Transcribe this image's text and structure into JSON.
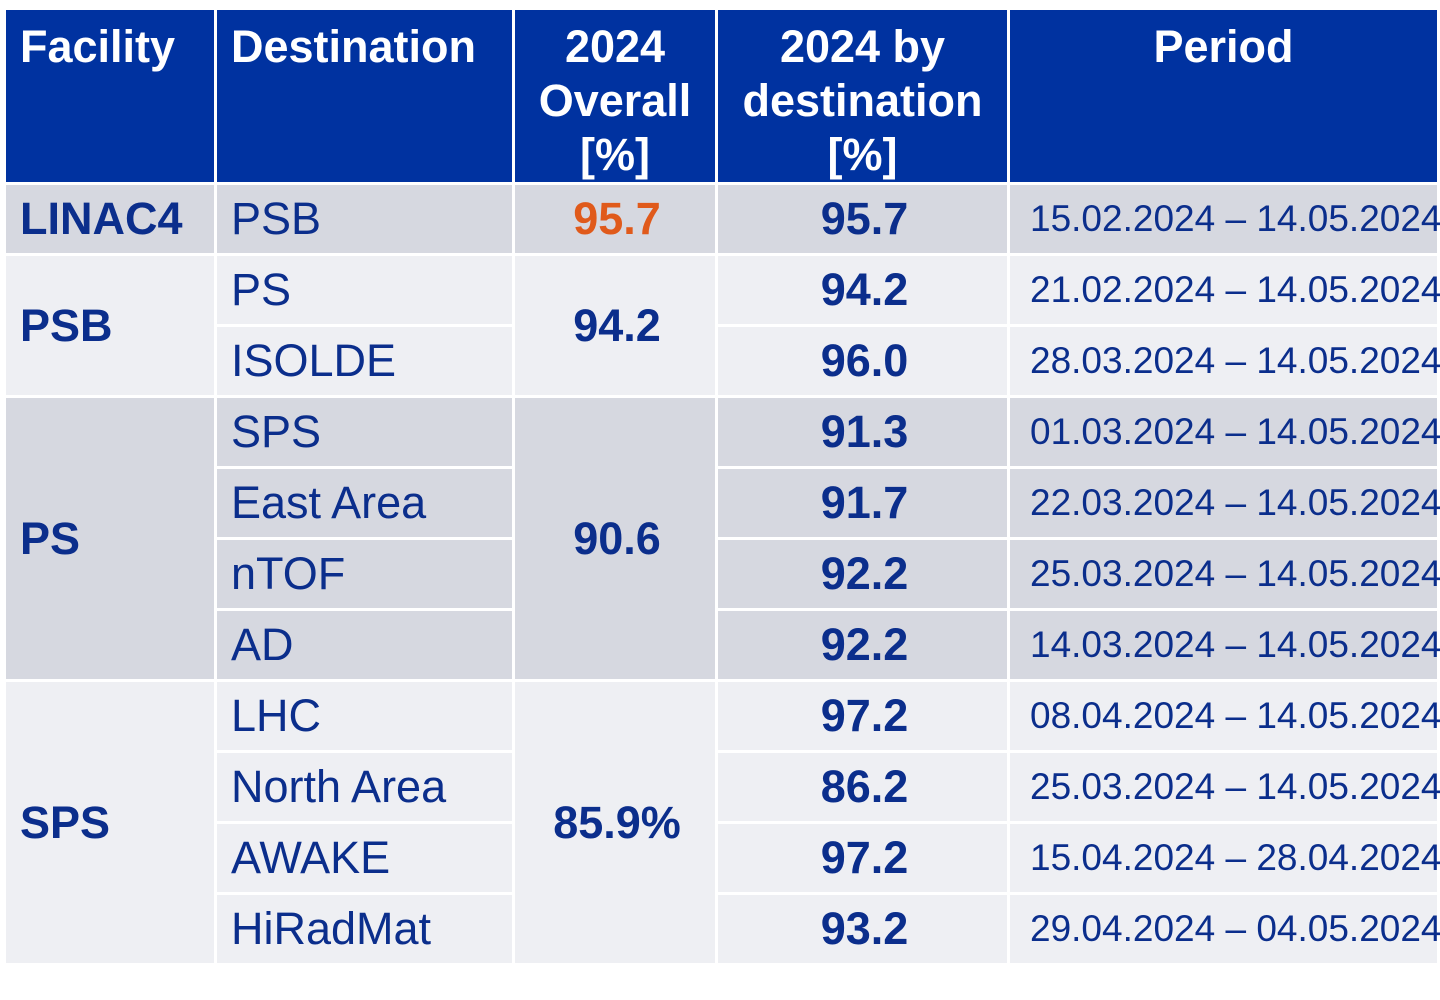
{
  "headers": {
    "facility": "Facility",
    "destination": "Destination",
    "overall_line1": "2024",
    "overall_line2": "Overall",
    "overall_line3": "[%]",
    "bydest_line1": "2024 by",
    "bydest_line2": "destination",
    "bydest_line3": "[%]",
    "period": "Period"
  },
  "colors": {
    "header_bg": "#0032a0",
    "text": "#0b2e8c",
    "highlight": "#e05a1b",
    "row_dark": "#d6d8e0",
    "row_light": "#eeeff3"
  },
  "groups": [
    {
      "facility": "LINAC4",
      "overall": "95.7",
      "rows": [
        {
          "destination": "PSB",
          "by_destination": "95.7",
          "period": "15.02.2024 – 14.05.2024"
        }
      ]
    },
    {
      "facility": "PSB",
      "overall": "94.2",
      "rows": [
        {
          "destination": "PS",
          "by_destination": "94.2",
          "period": "21.02.2024 – 14.05.2024"
        },
        {
          "destination": "ISOLDE",
          "by_destination": "96.0",
          "period": "28.03.2024 – 14.05.2024"
        }
      ]
    },
    {
      "facility": "PS",
      "overall": "90.6",
      "rows": [
        {
          "destination": "SPS",
          "by_destination": "91.3",
          "period": "01.03.2024 – 14.05.2024"
        },
        {
          "destination": "East Area",
          "by_destination": "91.7",
          "period": "22.03.2024 – 14.05.2024"
        },
        {
          "destination": "nTOF",
          "by_destination": "92.2",
          "period": "25.03.2024 – 14.05.2024"
        },
        {
          "destination": "AD",
          "by_destination": "92.2",
          "period": "14.03.2024 – 14.05.2024"
        }
      ]
    },
    {
      "facility": "SPS",
      "overall": "85.9%",
      "rows": [
        {
          "destination": "LHC",
          "by_destination": "97.2",
          "period": "08.04.2024 – 14.05.2024"
        },
        {
          "destination": "North Area",
          "by_destination": "86.2",
          "period": "25.03.2024 – 14.05.2024"
        },
        {
          "destination": "AWAKE",
          "by_destination": "97.2",
          "period": "15.04.2024 – 28.04.2024"
        },
        {
          "destination": "HiRadMat",
          "by_destination": "93.2",
          "period": "29.04.2024 – 04.05.2024"
        }
      ]
    }
  ]
}
